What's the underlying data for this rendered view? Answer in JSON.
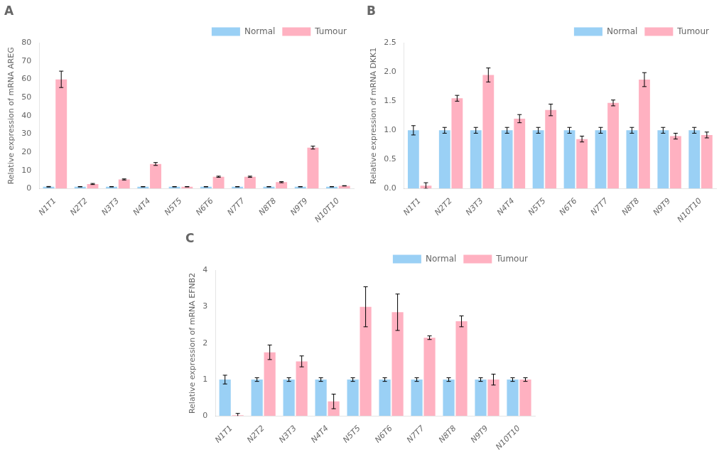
{
  "chart_data": [
    {
      "type": "bar",
      "title": "A",
      "y_label": "Relative expression of mRNA AREG",
      "categories": [
        "N1T1",
        "N2T2",
        "N3T3",
        "N4T4",
        "N5T5",
        "N6T6",
        "N7T7",
        "N8T8",
        "N9T9",
        "N10T10"
      ],
      "series": [
        {
          "name": "Normal",
          "values": [
            1.0,
            1.0,
            1.0,
            1.0,
            1.0,
            1.0,
            1.0,
            1.0,
            1.0,
            1.0
          ],
          "errors": [
            0.15,
            0.1,
            0.1,
            0.1,
            0.1,
            0.1,
            0.1,
            0.1,
            0.1,
            0.1
          ]
        },
        {
          "name": "Tumour",
          "values": [
            60.0,
            2.5,
            5.0,
            13.5,
            1.0,
            6.5,
            6.5,
            3.5,
            22.5,
            1.5
          ],
          "errors": [
            4.5,
            0.3,
            0.3,
            0.8,
            0.1,
            0.3,
            0.3,
            0.3,
            0.8,
            0.1
          ]
        }
      ],
      "ylim": [
        0,
        80
      ],
      "yticks": [
        0,
        10,
        20,
        30,
        40,
        50,
        60,
        70,
        80
      ],
      "grid": false,
      "legend": "upper right"
    },
    {
      "type": "bar",
      "title": "B",
      "y_label": "Relative expression of mRNA DKK1",
      "categories": [
        "N1T1",
        "N2T2",
        "N3T3",
        "N4T4",
        "N5T5",
        "N6T6",
        "N7T7",
        "N8T8",
        "N9T9",
        "N10T10"
      ],
      "series": [
        {
          "name": "Normal",
          "values": [
            1.0,
            1.0,
            1.0,
            1.0,
            1.0,
            1.0,
            1.0,
            1.0,
            1.0,
            1.0
          ],
          "errors": [
            0.08,
            0.05,
            0.05,
            0.05,
            0.05,
            0.05,
            0.05,
            0.05,
            0.05,
            0.05
          ]
        },
        {
          "name": "Tumour",
          "values": [
            0.05,
            1.55,
            1.95,
            1.2,
            1.35,
            0.85,
            1.47,
            1.87,
            0.9,
            0.92
          ],
          "errors": [
            0.05,
            0.05,
            0.12,
            0.07,
            0.1,
            0.05,
            0.05,
            0.12,
            0.05,
            0.05
          ]
        }
      ],
      "ylim": [
        0,
        2.5
      ],
      "yticks": [
        {
          "value": 0,
          "label": "0.0"
        },
        0.5,
        {
          "value": 1,
          "label": "1.0"
        },
        1.5,
        {
          "value": 2,
          "label": "2.0"
        },
        2.5
      ],
      "grid": false,
      "legend": "upper right"
    },
    {
      "type": "bar",
      "title": "C",
      "y_label": "Relative expression of mRNA EFNB2",
      "categories": [
        "N1T1",
        "N2T2",
        "N3T3",
        "N4T4",
        "N5T5",
        "N6T6",
        "N7T7",
        "N8T8",
        "N9T9",
        "N10T10"
      ],
      "series": [
        {
          "name": "Normal",
          "values": [
            1.0,
            1.0,
            1.0,
            1.0,
            1.0,
            1.0,
            1.0,
            1.0,
            1.0,
            1.0
          ],
          "errors": [
            0.12,
            0.05,
            0.05,
            0.05,
            0.05,
            0.05,
            0.05,
            0.05,
            0.05,
            0.05
          ]
        },
        {
          "name": "Tumour",
          "values": [
            0.02,
            1.75,
            1.5,
            0.4,
            3.0,
            2.85,
            2.15,
            2.6,
            1.0,
            1.0
          ],
          "errors": [
            0.05,
            0.2,
            0.15,
            0.2,
            0.55,
            0.5,
            0.05,
            0.15,
            0.15,
            0.05
          ]
        }
      ],
      "ylim": [
        0,
        4
      ],
      "yticks": [
        0,
        1,
        2,
        3,
        4
      ],
      "grid": false,
      "legend": "upper right"
    }
  ]
}
